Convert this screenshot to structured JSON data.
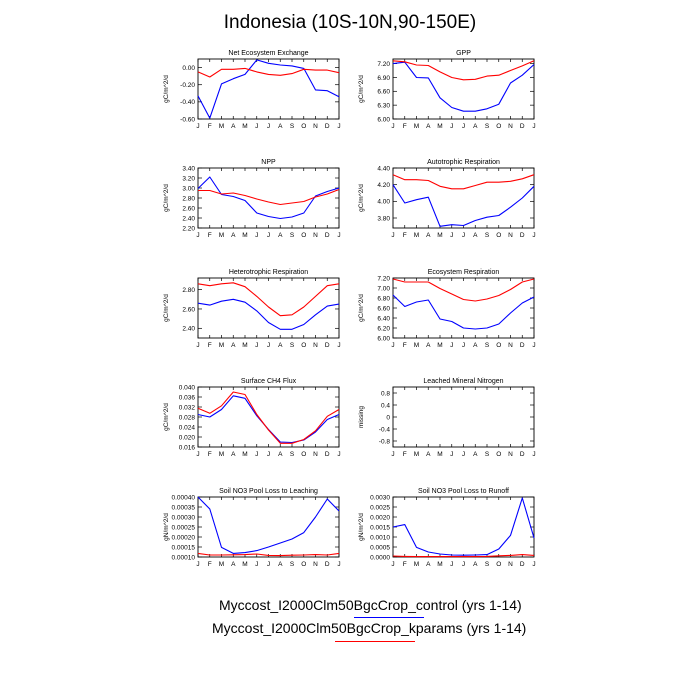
{
  "page": {
    "title": "Indonesia (10S-10N,90-150E)"
  },
  "colors": {
    "control": "#0000ff",
    "kparams": "#ff0000"
  },
  "months": [
    "J",
    "F",
    "M",
    "A",
    "M",
    "J",
    "J",
    "A",
    "S",
    "O",
    "N",
    "D",
    "J"
  ],
  "legend": [
    {
      "label": "Myccost_I2000Clm50BgcCrop_control (yrs 1-14)",
      "color": "#0000ff"
    },
    {
      "label": "Myccost_I2000Clm50BgcCrop_kparams (yrs 1-14)",
      "color": "#ff0000"
    }
  ],
  "chart_data": [
    {
      "type": "line",
      "title": "Net Ecosystem Exchange",
      "ylabel": "gC/m^2/d",
      "ylim": [
        -0.6,
        0.1
      ],
      "yticks": [
        0.0,
        -0.2,
        -0.4,
        -0.6
      ],
      "ytick_labels": [
        "0.00",
        "-0.20",
        "-0.40",
        "-0.60"
      ],
      "series": [
        {
          "name": "control",
          "values": [
            -0.33,
            -0.59,
            -0.19,
            -0.13,
            -0.08,
            0.09,
            0.05,
            0.03,
            0.02,
            -0.01,
            -0.26,
            -0.27,
            -0.34
          ]
        },
        {
          "name": "kparams",
          "values": [
            -0.05,
            -0.11,
            -0.02,
            -0.02,
            -0.01,
            -0.05,
            -0.08,
            -0.09,
            -0.07,
            -0.02,
            -0.03,
            -0.03,
            -0.06
          ]
        }
      ]
    },
    {
      "type": "line",
      "title": "GPP",
      "ylabel": "gC/m^2/d",
      "ylim": [
        6.0,
        7.3
      ],
      "yticks": [
        7.2,
        6.9,
        6.6,
        6.3,
        6.0
      ],
      "ytick_labels": [
        "7.20",
        "6.90",
        "6.60",
        "6.30",
        "6.00"
      ],
      "series": [
        {
          "name": "control",
          "values": [
            7.2,
            7.23,
            6.9,
            6.89,
            6.46,
            6.25,
            6.17,
            6.17,
            6.22,
            6.32,
            6.78,
            6.95,
            7.18
          ]
        },
        {
          "name": "kparams",
          "values": [
            7.26,
            7.24,
            7.17,
            7.16,
            7.02,
            6.9,
            6.85,
            6.86,
            6.93,
            6.95,
            7.05,
            7.15,
            7.26
          ]
        }
      ]
    },
    {
      "type": "line",
      "title": "NPP",
      "ylabel": "gC/m^2/d",
      "ylim": [
        2.2,
        3.4
      ],
      "yticks": [
        3.4,
        3.2,
        3.0,
        2.8,
        2.6,
        2.4,
        2.2
      ],
      "ytick_labels": [
        "3.40",
        "3.20",
        "3.00",
        "2.80",
        "2.60",
        "2.40",
        "2.20"
      ],
      "series": [
        {
          "name": "control",
          "values": [
            2.99,
            3.22,
            2.87,
            2.83,
            2.75,
            2.5,
            2.43,
            2.39,
            2.42,
            2.5,
            2.84,
            2.93,
            3.0
          ]
        },
        {
          "name": "kparams",
          "values": [
            2.95,
            2.95,
            2.88,
            2.9,
            2.85,
            2.78,
            2.72,
            2.67,
            2.7,
            2.73,
            2.82,
            2.88,
            2.97
          ]
        }
      ]
    },
    {
      "type": "line",
      "title": "Autotrophic Respiration",
      "ylabel": "gC/m^2/d",
      "ylim": [
        3.68,
        4.4
      ],
      "yticks": [
        4.4,
        4.2,
        4.0,
        3.8
      ],
      "ytick_labels": [
        "4.40",
        "4.20",
        "4.00",
        "3.80"
      ],
      "series": [
        {
          "name": "control",
          "values": [
            4.2,
            3.98,
            4.02,
            4.05,
            3.7,
            3.72,
            3.71,
            3.77,
            3.81,
            3.83,
            3.93,
            4.04,
            4.18
          ]
        },
        {
          "name": "kparams",
          "values": [
            4.32,
            4.26,
            4.26,
            4.25,
            4.18,
            4.15,
            4.15,
            4.19,
            4.23,
            4.23,
            4.24,
            4.27,
            4.32
          ]
        }
      ]
    },
    {
      "type": "line",
      "title": "Heterotrophic Respiration",
      "ylabel": "gC/m^2/d",
      "ylim": [
        2.3,
        2.92
      ],
      "yticks": [
        2.8,
        2.6,
        2.4
      ],
      "ytick_labels": [
        "2.80",
        "2.60",
        "2.40"
      ],
      "series": [
        {
          "name": "control",
          "values": [
            2.66,
            2.64,
            2.68,
            2.7,
            2.67,
            2.58,
            2.46,
            2.39,
            2.39,
            2.44,
            2.54,
            2.63,
            2.65
          ]
        },
        {
          "name": "kparams",
          "values": [
            2.86,
            2.84,
            2.86,
            2.87,
            2.83,
            2.73,
            2.62,
            2.53,
            2.54,
            2.62,
            2.73,
            2.84,
            2.86
          ]
        }
      ]
    },
    {
      "type": "line",
      "title": "Ecosystem Respiration",
      "ylabel": "gC/m^2/d",
      "ylim": [
        6.0,
        7.2
      ],
      "yticks": [
        7.2,
        7.0,
        6.8,
        6.6,
        6.4,
        6.2,
        6.0
      ],
      "ytick_labels": [
        "7.20",
        "7.00",
        "6.80",
        "6.60",
        "6.40",
        "6.20",
        "6.00"
      ],
      "series": [
        {
          "name": "control",
          "values": [
            6.86,
            6.63,
            6.72,
            6.76,
            6.38,
            6.33,
            6.2,
            6.18,
            6.2,
            6.28,
            6.5,
            6.7,
            6.82
          ]
        },
        {
          "name": "kparams",
          "values": [
            7.18,
            7.12,
            7.12,
            7.12,
            6.99,
            6.88,
            6.77,
            6.74,
            6.78,
            6.85,
            6.97,
            7.12,
            7.18
          ]
        }
      ]
    },
    {
      "type": "line",
      "title": "Surface CH4 Flux",
      "ylabel": "gC/m^2/d",
      "ylim": [
        0.016,
        0.04
      ],
      "yticks": [
        0.04,
        0.036,
        0.032,
        0.028,
        0.024,
        0.02,
        0.016
      ],
      "ytick_labels": [
        "0.040",
        "0.036",
        "0.032",
        "0.028",
        "0.024",
        "0.020",
        "0.016"
      ],
      "series": [
        {
          "name": "control",
          "values": [
            0.029,
            0.028,
            0.031,
            0.0365,
            0.0355,
            0.0285,
            0.023,
            0.018,
            0.0178,
            0.0188,
            0.022,
            0.027,
            0.029
          ]
        },
        {
          "name": "kparams",
          "values": [
            0.0315,
            0.0295,
            0.0325,
            0.038,
            0.037,
            0.029,
            0.0228,
            0.0175,
            0.0175,
            0.019,
            0.0225,
            0.0283,
            0.031
          ]
        }
      ]
    },
    {
      "type": "line",
      "title": "Leached Mineral Nitrogen",
      "ylabel": "missing",
      "ylim": [
        -1.0,
        1.0
      ],
      "yticks": [
        0.8,
        0.4,
        0.0,
        -0.4,
        -0.8
      ],
      "ytick_labels": [
        "0.8",
        "0.4",
        "0",
        "-0.4",
        "-0.8"
      ],
      "series": []
    },
    {
      "type": "line",
      "title": "Soil NO3 Pool Loss to Leaching",
      "ylabel": "gN/m^2/d",
      "ylim": [
        0.0001,
        0.0004
      ],
      "yticks": [
        0.0004,
        0.00035,
        0.0003,
        0.00025,
        0.0002,
        0.00015,
        0.0001
      ],
      "ytick_labels": [
        "0.00040",
        "0.00035",
        "0.00030",
        "0.00025",
        "0.00020",
        "0.00015",
        "0.00010"
      ],
      "series": [
        {
          "name": "control",
          "values": [
            0.0004,
            0.00034,
            0.000148,
            0.000118,
            0.000122,
            0.000132,
            0.00015,
            0.00017,
            0.00019,
            0.000222,
            0.0003,
            0.00039,
            0.00033
          ]
        },
        {
          "name": "kparams",
          "values": [
            0.000118,
            0.00011,
            0.00011,
            0.000111,
            0.000112,
            0.000115,
            0.000108,
            0.000107,
            0.000109,
            0.00011,
            0.000112,
            0.00011,
            0.000118
          ]
        }
      ]
    },
    {
      "type": "line",
      "title": "Soil NO3 Pool Loss to Runoff",
      "ylabel": "gN/m^2/d",
      "ylim": [
        0.0,
        0.003
      ],
      "yticks": [
        0.003,
        0.0025,
        0.002,
        0.0015,
        0.001,
        0.0005,
        0.0
      ],
      "ytick_labels": [
        "0.0030",
        "0.0025",
        "0.0020",
        "0.0015",
        "0.0010",
        "0.0005",
        "0.0000"
      ],
      "series": [
        {
          "name": "control",
          "values": [
            0.0015,
            0.00162,
            0.00048,
            0.00025,
            0.00015,
            0.0001,
            9e-05,
            0.0001,
            0.00012,
            0.0004,
            0.00108,
            0.00295,
            0.00095
          ]
        },
        {
          "name": "kparams",
          "values": [
            5e-05,
            3e-05,
            2e-05,
            2e-05,
            2e-05,
            2e-05,
            2e-05,
            2e-05,
            3e-05,
            6e-05,
            8e-05,
            0.00012,
            8e-05
          ]
        }
      ]
    }
  ]
}
